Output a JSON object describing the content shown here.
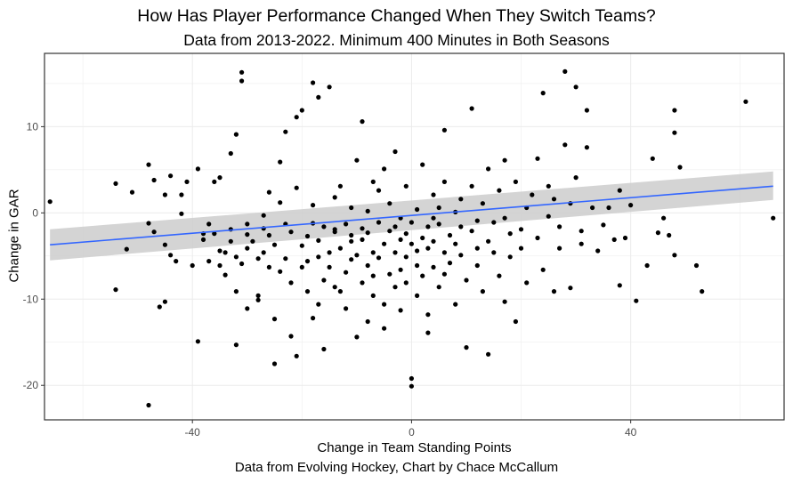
{
  "chart_data": {
    "type": "scatter",
    "title": "How Has Player Performance Changed When They Switch Teams?",
    "subtitle": "Data from 2013-2022. Minimum 400 Minutes in Both Seasons",
    "xlabel": "Change in Team Standing Points",
    "ylabel": "Change in GAR",
    "caption": "Data from Evolving Hockey, Chart by Chace McCallum",
    "xlim": [
      -67,
      68
    ],
    "ylim": [
      -24,
      18.5
    ],
    "x_ticks": [
      -40,
      0,
      40
    ],
    "y_ticks": [
      -20,
      -10,
      0,
      10
    ],
    "x_tick_labels": [
      "-40",
      "0",
      "40"
    ],
    "y_tick_labels": [
      "-20",
      "-10",
      "0",
      "10"
    ],
    "grid": true,
    "colors": {
      "points": "#000000",
      "trend_line": "#3366FF",
      "confidence_band": "#CCCCCC",
      "grid_major": "#EBEBEB",
      "panel_border": "#333333"
    },
    "trend": {
      "method": "linear",
      "x": [
        -66,
        66
      ],
      "y": [
        -3.7,
        3.1
      ],
      "band_lower": [
        -5.5,
        1.5
      ],
      "band_upper": [
        -1.9,
        4.8
      ]
    },
    "points": [
      [
        -66,
        1.3
      ],
      [
        -54,
        3.4
      ],
      [
        -54,
        -8.9
      ],
      [
        -52,
        -4.2
      ],
      [
        -51,
        2.4
      ],
      [
        -48,
        5.6
      ],
      [
        -48,
        -22.3
      ],
      [
        -48,
        -1.2
      ],
      [
        -47,
        -2.2
      ],
      [
        -47,
        3.8
      ],
      [
        -46,
        -10.9
      ],
      [
        -45,
        2.1
      ],
      [
        -45,
        -10.3
      ],
      [
        -45,
        -3.7
      ],
      [
        -44,
        4.3
      ],
      [
        -44,
        -4.9
      ],
      [
        -43,
        -5.6
      ],
      [
        -42,
        2.1
      ],
      [
        -42,
        -0.1
      ],
      [
        -41,
        3.6
      ],
      [
        -40,
        -6.1
      ],
      [
        -39,
        -14.9
      ],
      [
        -39,
        5.1
      ],
      [
        -38,
        -2.4
      ],
      [
        -38,
        -3.1
      ],
      [
        -37,
        -5.6
      ],
      [
        -37,
        -1.3
      ],
      [
        -36,
        -2.4
      ],
      [
        -36,
        3.6
      ],
      [
        -35,
        -4.4
      ],
      [
        -35,
        -6.1
      ],
      [
        -35,
        4.1
      ],
      [
        -34,
        -4.6
      ],
      [
        -34,
        -7.2
      ],
      [
        -33,
        -1.9
      ],
      [
        -33,
        -3.3
      ],
      [
        -33,
        6.9
      ],
      [
        -32,
        9.1
      ],
      [
        -32,
        -15.3
      ],
      [
        -32,
        -5.1
      ],
      [
        -32,
        -9.1
      ],
      [
        -31,
        16.3
      ],
      [
        -31,
        15.3
      ],
      [
        -31,
        -5.9
      ],
      [
        -30,
        -11.1
      ],
      [
        -30,
        -1.3
      ],
      [
        -30,
        -2.5
      ],
      [
        -30,
        -4.1
      ],
      [
        -29,
        -3.3
      ],
      [
        -28,
        -9.6
      ],
      [
        -28,
        -10.1
      ],
      [
        -28,
        -5.3
      ],
      [
        -27,
        -4.6
      ],
      [
        -27,
        -0.3
      ],
      [
        -27,
        -1.8
      ],
      [
        -26,
        -6.3
      ],
      [
        -26,
        -2.6
      ],
      [
        -26,
        2.4
      ],
      [
        -25,
        -12.3
      ],
      [
        -25,
        -17.5
      ],
      [
        -25,
        -3.7
      ],
      [
        -24,
        5.9
      ],
      [
        -24,
        -6.8
      ],
      [
        -24,
        1.2
      ],
      [
        -23,
        -1.3
      ],
      [
        -23,
        -5.3
      ],
      [
        -23,
        9.4
      ],
      [
        -22,
        -8.1
      ],
      [
        -22,
        -2.2
      ],
      [
        -22,
        -14.3
      ],
      [
        -21,
        2.9
      ],
      [
        -21,
        -16.6
      ],
      [
        -21,
        11.1
      ],
      [
        -20,
        -3.8
      ],
      [
        -20,
        11.9
      ],
      [
        -20,
        -6.3
      ],
      [
        -19,
        -9.1
      ],
      [
        -19,
        -2.7
      ],
      [
        -19,
        -5.6
      ],
      [
        -18,
        -1.2
      ],
      [
        -18,
        15.1
      ],
      [
        -18,
        -12.2
      ],
      [
        -18,
        0.9
      ],
      [
        -17,
        -5.1
      ],
      [
        -17,
        -10.6
      ],
      [
        -17,
        -3.2
      ],
      [
        -17,
        13.4
      ],
      [
        -16,
        -15.8
      ],
      [
        -16,
        -1.6
      ],
      [
        -16,
        -7.8
      ],
      [
        -15,
        -4.6
      ],
      [
        -15,
        14.6
      ],
      [
        -15,
        -6.3
      ],
      [
        -14,
        -2.2
      ],
      [
        -14,
        -8.6
      ],
      [
        -14,
        -1.9
      ],
      [
        -14,
        1.8
      ],
      [
        -13,
        -4.1
      ],
      [
        -13,
        -9.1
      ],
      [
        -13,
        3.1
      ],
      [
        -12,
        -1.3
      ],
      [
        -12,
        -6.9
      ],
      [
        -12,
        -11.1
      ],
      [
        -11,
        -3.3
      ],
      [
        -11,
        -5.4
      ],
      [
        -11,
        -2.6
      ],
      [
        -11,
        0.6
      ],
      [
        -10,
        -14.4
      ],
      [
        -10,
        -4.9
      ],
      [
        -10,
        6.1
      ],
      [
        -9,
        -1.8
      ],
      [
        -9,
        -8.1
      ],
      [
        -9,
        10.6
      ],
      [
        -9,
        -3.1
      ],
      [
        -8,
        -6.1
      ],
      [
        -8,
        -12.6
      ],
      [
        -8,
        -2.3
      ],
      [
        -8,
        0.2
      ],
      [
        -7,
        -4.6
      ],
      [
        -7,
        3.6
      ],
      [
        -7,
        -7.3
      ],
      [
        -7,
        -9.6
      ],
      [
        -6,
        -1.1
      ],
      [
        -6,
        -5.2
      ],
      [
        -6,
        2.6
      ],
      [
        -5,
        -3.6
      ],
      [
        -5,
        -10.6
      ],
      [
        -5,
        -13.4
      ],
      [
        -5,
        5.1
      ],
      [
        -4,
        -2.1
      ],
      [
        -4,
        -7.1
      ],
      [
        -4,
        1.1
      ],
      [
        -3,
        -4.6
      ],
      [
        -3,
        -8.6
      ],
      [
        -3,
        -1.6
      ],
      [
        -3,
        7.1
      ],
      [
        -2,
        -3.1
      ],
      [
        -2,
        -6.6
      ],
      [
        -2,
        -0.6
      ],
      [
        -2,
        -11.3
      ],
      [
        -1,
        -5.1
      ],
      [
        -1,
        -2.4
      ],
      [
        -1,
        -8.1
      ],
      [
        -1,
        3.1
      ],
      [
        0,
        -20.1
      ],
      [
        0,
        -19.2
      ],
      [
        0,
        -3.6
      ],
      [
        0,
        -1.1
      ],
      [
        1,
        -6.1
      ],
      [
        1,
        -4.4
      ],
      [
        1,
        0.4
      ],
      [
        1,
        -9.6
      ],
      [
        2,
        -2.9
      ],
      [
        2,
        -7.3
      ],
      [
        2,
        5.6
      ],
      [
        3,
        -1.6
      ],
      [
        3,
        -11.8
      ],
      [
        3,
        -4.1
      ],
      [
        3,
        -13.9
      ],
      [
        4,
        -0.6
      ],
      [
        4,
        -3.3
      ],
      [
        4,
        -6.3
      ],
      [
        4,
        2.1
      ],
      [
        5,
        -8.6
      ],
      [
        5,
        -1.3
      ],
      [
        5,
        0.6
      ],
      [
        6,
        -4.6
      ],
      [
        6,
        -7.1
      ],
      [
        6,
        9.6
      ],
      [
        6,
        3.6
      ],
      [
        7,
        -2.6
      ],
      [
        7,
        -5.8
      ],
      [
        8,
        0.1
      ],
      [
        8,
        -3.6
      ],
      [
        8,
        -10.6
      ],
      [
        9,
        -1.6
      ],
      [
        9,
        1.6
      ],
      [
        9,
        -4.9
      ],
      [
        10,
        -15.6
      ],
      [
        10,
        -7.8
      ],
      [
        11,
        -2.1
      ],
      [
        11,
        3.1
      ],
      [
        11,
        12.1
      ],
      [
        12,
        -0.9
      ],
      [
        12,
        -6.1
      ],
      [
        12,
        -4.1
      ],
      [
        13,
        1.1
      ],
      [
        13,
        -9.1
      ],
      [
        14,
        -3.3
      ],
      [
        14,
        -16.4
      ],
      [
        14,
        5.1
      ],
      [
        15,
        -1.1
      ],
      [
        15,
        -4.6
      ],
      [
        16,
        2.6
      ],
      [
        16,
        -7.3
      ],
      [
        17,
        -0.6
      ],
      [
        17,
        -10.3
      ],
      [
        17,
        6.1
      ],
      [
        18,
        -5.1
      ],
      [
        18,
        -2.4
      ],
      [
        19,
        -12.6
      ],
      [
        19,
        3.6
      ],
      [
        20,
        -1.9
      ],
      [
        20,
        -4.1
      ],
      [
        21,
        0.6
      ],
      [
        21,
        -8.1
      ],
      [
        22,
        2.1
      ],
      [
        23,
        -2.9
      ],
      [
        23,
        6.3
      ],
      [
        24,
        -6.6
      ],
      [
        24,
        13.9
      ],
      [
        25,
        -0.4
      ],
      [
        25,
        3.1
      ],
      [
        26,
        -9.1
      ],
      [
        26,
        1.6
      ],
      [
        27,
        -4.1
      ],
      [
        27,
        -1.6
      ],
      [
        28,
        16.4
      ],
      [
        28,
        7.9
      ],
      [
        29,
        -8.7
      ],
      [
        29,
        1.1
      ],
      [
        30,
        14.6
      ],
      [
        30,
        4.1
      ],
      [
        31,
        -3.6
      ],
      [
        31,
        -2.1
      ],
      [
        32,
        11.9
      ],
      [
        32,
        7.6
      ],
      [
        33,
        0.6
      ],
      [
        34,
        -4.4
      ],
      [
        35,
        -1.4
      ],
      [
        36,
        0.6
      ],
      [
        37,
        -3.1
      ],
      [
        38,
        -8.4
      ],
      [
        38,
        2.6
      ],
      [
        39,
        -2.9
      ],
      [
        40,
        0.9
      ],
      [
        41,
        -10.2
      ],
      [
        43,
        -6.1
      ],
      [
        44,
        6.3
      ],
      [
        45,
        -2.3
      ],
      [
        46,
        -0.6
      ],
      [
        47,
        -2.6
      ],
      [
        48,
        11.9
      ],
      [
        48,
        9.3
      ],
      [
        48,
        -4.9
      ],
      [
        49,
        5.3
      ],
      [
        52,
        -6.1
      ],
      [
        53,
        -9.1
      ],
      [
        61,
        12.9
      ],
      [
        66,
        -0.6
      ]
    ]
  }
}
